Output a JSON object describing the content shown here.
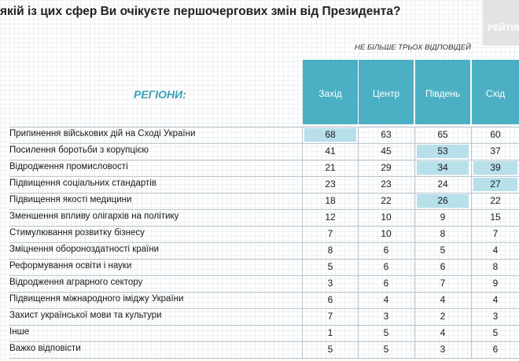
{
  "title": "якій із цих сфер Ви очікуєте першочергових змін від Президента?",
  "brand": "РЕЙТИНГ",
  "chart_data": {
    "type": "table",
    "subtitle": "НЕ БІЛЬШЕ ТРЬОХ ВІДПОВІДЕЙ",
    "row_header": "РЕГІОНИ:",
    "columns": [
      "Захід",
      "Центр",
      "Південь",
      "Схід"
    ],
    "rows": [
      {
        "label": "Припинення військових дій на Сході України",
        "values": [
          68,
          63,
          65,
          60
        ],
        "highlight": [
          true,
          false,
          false,
          false
        ]
      },
      {
        "label": "Посилення боротьби з корупцією",
        "values": [
          41,
          45,
          53,
          37
        ],
        "highlight": [
          false,
          false,
          true,
          false
        ]
      },
      {
        "label": "Відродження промисловості",
        "values": [
          21,
          29,
          34,
          39
        ],
        "highlight": [
          false,
          false,
          true,
          true
        ]
      },
      {
        "label": "Підвищення соціальних стандартів",
        "values": [
          23,
          23,
          24,
          27
        ],
        "highlight": [
          false,
          false,
          false,
          true
        ]
      },
      {
        "label": "Підвищення якості медицини",
        "values": [
          18,
          22,
          26,
          22
        ],
        "highlight": [
          false,
          false,
          true,
          false
        ]
      },
      {
        "label": "Зменшення впливу олігархів на політику",
        "values": [
          12,
          10,
          9,
          15
        ],
        "highlight": [
          false,
          false,
          false,
          false
        ]
      },
      {
        "label": "Стимулювання розвитку бізнесу",
        "values": [
          7,
          10,
          8,
          7
        ],
        "highlight": [
          false,
          false,
          false,
          false
        ]
      },
      {
        "label": "Зміцнення обороноздатності країни",
        "values": [
          8,
          6,
          5,
          4
        ],
        "highlight": [
          false,
          false,
          false,
          false
        ]
      },
      {
        "label": "Реформування освіти і науки",
        "values": [
          5,
          6,
          6,
          8
        ],
        "highlight": [
          false,
          false,
          false,
          false
        ]
      },
      {
        "label": "Відродження аграрного сектору",
        "values": [
          3,
          6,
          7,
          9
        ],
        "highlight": [
          false,
          false,
          false,
          false
        ]
      },
      {
        "label": "Підвищення міжнародного іміджу України",
        "values": [
          6,
          4,
          4,
          4
        ],
        "highlight": [
          false,
          false,
          false,
          false
        ]
      },
      {
        "label": "Захист української мови та культури",
        "values": [
          7,
          3,
          2,
          3
        ],
        "highlight": [
          false,
          false,
          false,
          false
        ]
      },
      {
        "label": "Інше",
        "values": [
          1,
          5,
          4,
          5
        ],
        "highlight": [
          false,
          false,
          false,
          false
        ]
      },
      {
        "label": "Важко відповісти",
        "values": [
          5,
          5,
          3,
          6
        ],
        "highlight": [
          false,
          false,
          false,
          false
        ]
      }
    ]
  }
}
